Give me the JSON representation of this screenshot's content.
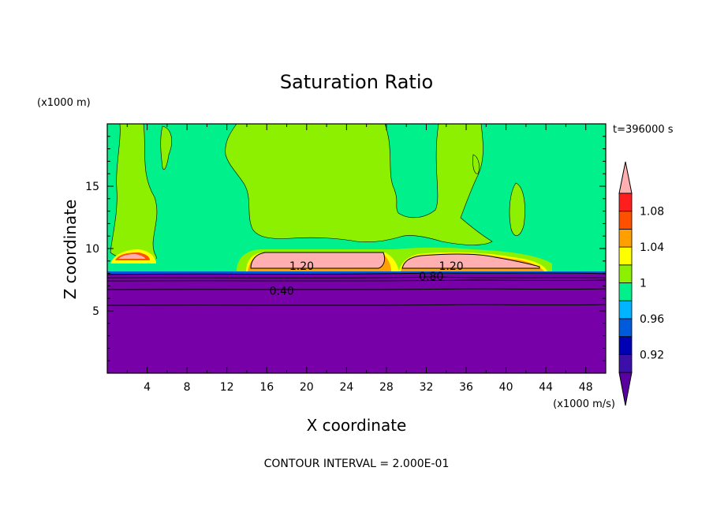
{
  "chart_data": {
    "type": "heatmap",
    "title": "Saturation Ratio",
    "xlabel": "X coordinate",
    "ylabel": "Z coordinate",
    "x_unit": "(x1000 m/s)",
    "y_unit": "(x1000 m)",
    "time_label": "t=396000 s",
    "footer": "CONTOUR INTERVAL = 2.000E-01",
    "xlim": [
      0,
      50
    ],
    "ylim": [
      0,
      20
    ],
    "x_ticks": [
      "4",
      "8",
      "12",
      "16",
      "20",
      "24",
      "28",
      "32",
      "36",
      "40",
      "44",
      "48"
    ],
    "y_ticks": [
      "5",
      "10",
      "15"
    ],
    "colorbar": {
      "tick_labels": [
        "0.92",
        "0.96",
        "1",
        "1.04",
        "1.08"
      ],
      "levels": [
        0.9,
        0.92,
        0.94,
        0.96,
        0.98,
        1.0,
        1.02,
        1.04,
        1.06,
        1.08,
        1.1
      ],
      "colors": [
        "#5a00a0",
        "#3c10a8",
        "#0000b4",
        "#005adc",
        "#00b4ff",
        "#00f08c",
        "#8cf000",
        "#ffff00",
        "#ffa000",
        "#ff5000",
        "#ff1e1e",
        "#ffafaf"
      ]
    },
    "contour_labels": [
      {
        "text": "1.20",
        "x": 19.5,
        "y": 8.6
      },
      {
        "text": "1.20",
        "x": 34.5,
        "y": 8.6
      },
      {
        "text": "0.80",
        "x": 32.5,
        "y": 7.8
      },
      {
        "text": "0.40",
        "x": 17.5,
        "y": 6.6
      }
    ]
  }
}
